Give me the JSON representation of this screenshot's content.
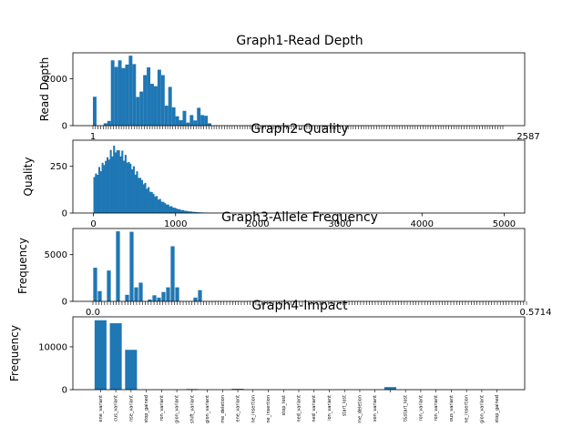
{
  "figure_bg": "#ffffff",
  "bar_color": "#1f77b4",
  "chart_data": [
    {
      "type": "bar",
      "title": "Graph1-Read Depth",
      "ylabel": "Read Depth",
      "xlabel": "",
      "ylim": [
        0,
        3100
      ],
      "yticks": [
        0,
        2000
      ],
      "x_tick_labels": [
        "1",
        "2587"
      ],
      "grid": false,
      "values": [
        1230,
        0,
        0,
        100,
        200,
        2780,
        2500,
        2780,
        2450,
        2600,
        2980,
        2620,
        1220,
        1450,
        2150,
        2480,
        1780,
        1680,
        2380,
        2150,
        850,
        1650,
        780,
        400,
        230,
        630,
        130,
        450,
        220,
        760,
        450,
        420,
        100
      ]
    },
    {
      "type": "bar",
      "title": "Graph2-Quality",
      "ylabel": "Quality",
      "xlabel": "",
      "xlim": [
        -250,
        5250
      ],
      "ylim": [
        0,
        390
      ],
      "xticks": [
        0,
        1000,
        2000,
        3000,
        4000,
        5000
      ],
      "yticks": [
        0,
        250
      ],
      "grid": false,
      "distribution": {
        "shape": "right-skewed",
        "peak_x": 250,
        "peak_value": 365,
        "x_start": 0,
        "x_end": 5000
      }
    },
    {
      "type": "bar",
      "title": "Graph3-Allele Frequency",
      "ylabel": "Frequency",
      "xlabel": "",
      "ylim": [
        0,
        7800
      ],
      "yticks": [
        0,
        5000
      ],
      "x_tick_labels": [
        "0.0",
        "0.5714"
      ],
      "grid": false,
      "values": [
        3600,
        1100,
        0,
        3300,
        0,
        7500,
        0,
        700,
        7450,
        1500,
        2000,
        0,
        200,
        650,
        400,
        1000,
        1500,
        5900,
        1500,
        0,
        0,
        0,
        400,
        1200,
        0,
        0,
        0
      ]
    },
    {
      "type": "bar",
      "title": "Graph4-Impact",
      "ylabel": "Frequency",
      "xlabel": "",
      "ylim": [
        0,
        17000
      ],
      "yticks": [
        0,
        10000
      ],
      "grid": false,
      "categories": [
        "ene_variant",
        "cus_variant",
        "nse_variant",
        "stop_gained",
        "ron_variant",
        "gion_variant",
        "shift_variant",
        "gion_variant",
        "me_deletion",
        "ene_variant",
        "ne_insertion",
        "ne_insertion",
        "stop_lost",
        "ned_variant",
        "ned_variant",
        "ion_variant",
        "start_lost",
        "me_deletion",
        "xon_variant",
        "",
        "t&start_lost",
        "ron_variant",
        "ron_variant",
        "ous_variant",
        "ne_insertion",
        "gion_variant",
        "stop_gained"
      ],
      "values": [
        16200,
        15500,
        9300,
        0,
        0,
        0,
        150,
        0,
        0,
        200,
        0,
        0,
        0,
        0,
        0,
        0,
        0,
        0,
        0,
        600,
        0,
        0,
        0,
        0,
        0,
        0,
        0
      ]
    }
  ]
}
